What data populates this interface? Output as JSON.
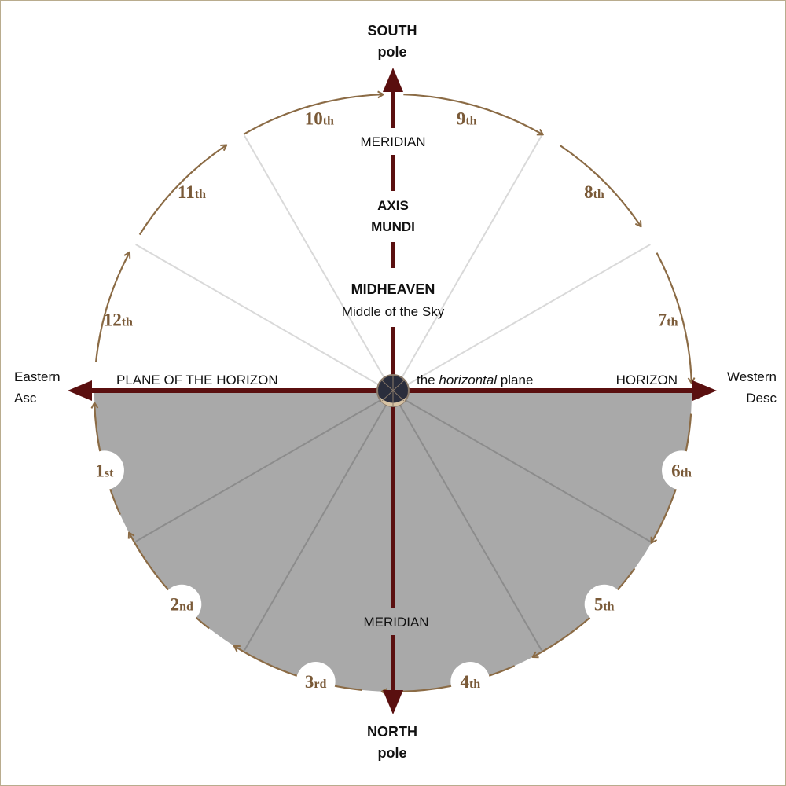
{
  "colors": {
    "axis": "#5a0f0f",
    "arc": "#8b6b45",
    "house_text": "#7a5a38",
    "below_horizon_fill": "#a9a9a9",
    "frame": "#b9ac8e",
    "divider_light": "#d9d9d9",
    "divider_dark": "#8c8c8c"
  },
  "poles": {
    "south_line1": "SOUTH",
    "south_line2": "pole",
    "north_line1": "NORTH",
    "north_line2": "pole"
  },
  "directions": {
    "east_line1": "Eastern",
    "east_line2": "Asc",
    "west_line1": "Western",
    "west_line2": "Desc"
  },
  "labels": {
    "meridian_upper": "MERIDIAN",
    "axis_mundi_line1": "AXIS",
    "axis_mundi_line2": "MUNDI",
    "midheaven": "MIDHEAVEN",
    "midheaven_sub": "Middle of the Sky",
    "plane_of_horizon": "PLANE OF THE HORIZON",
    "horizontal_prefix": "the ",
    "horizontal_italic": "horizontal",
    "horizontal_suffix": " plane",
    "horizon": "HORIZON",
    "meridian_lower": "MERIDIAN"
  },
  "houses": [
    {
      "num": "1",
      "suffix": "st"
    },
    {
      "num": "2",
      "suffix": "nd"
    },
    {
      "num": "3",
      "suffix": "rd"
    },
    {
      "num": "4",
      "suffix": "th"
    },
    {
      "num": "5",
      "suffix": "th"
    },
    {
      "num": "6",
      "suffix": "th"
    },
    {
      "num": "7",
      "suffix": "th"
    },
    {
      "num": "8",
      "suffix": "th"
    },
    {
      "num": "9",
      "suffix": "th"
    },
    {
      "num": "10",
      "suffix": "th"
    },
    {
      "num": "11",
      "suffix": "th"
    },
    {
      "num": "12",
      "suffix": "th"
    }
  ]
}
